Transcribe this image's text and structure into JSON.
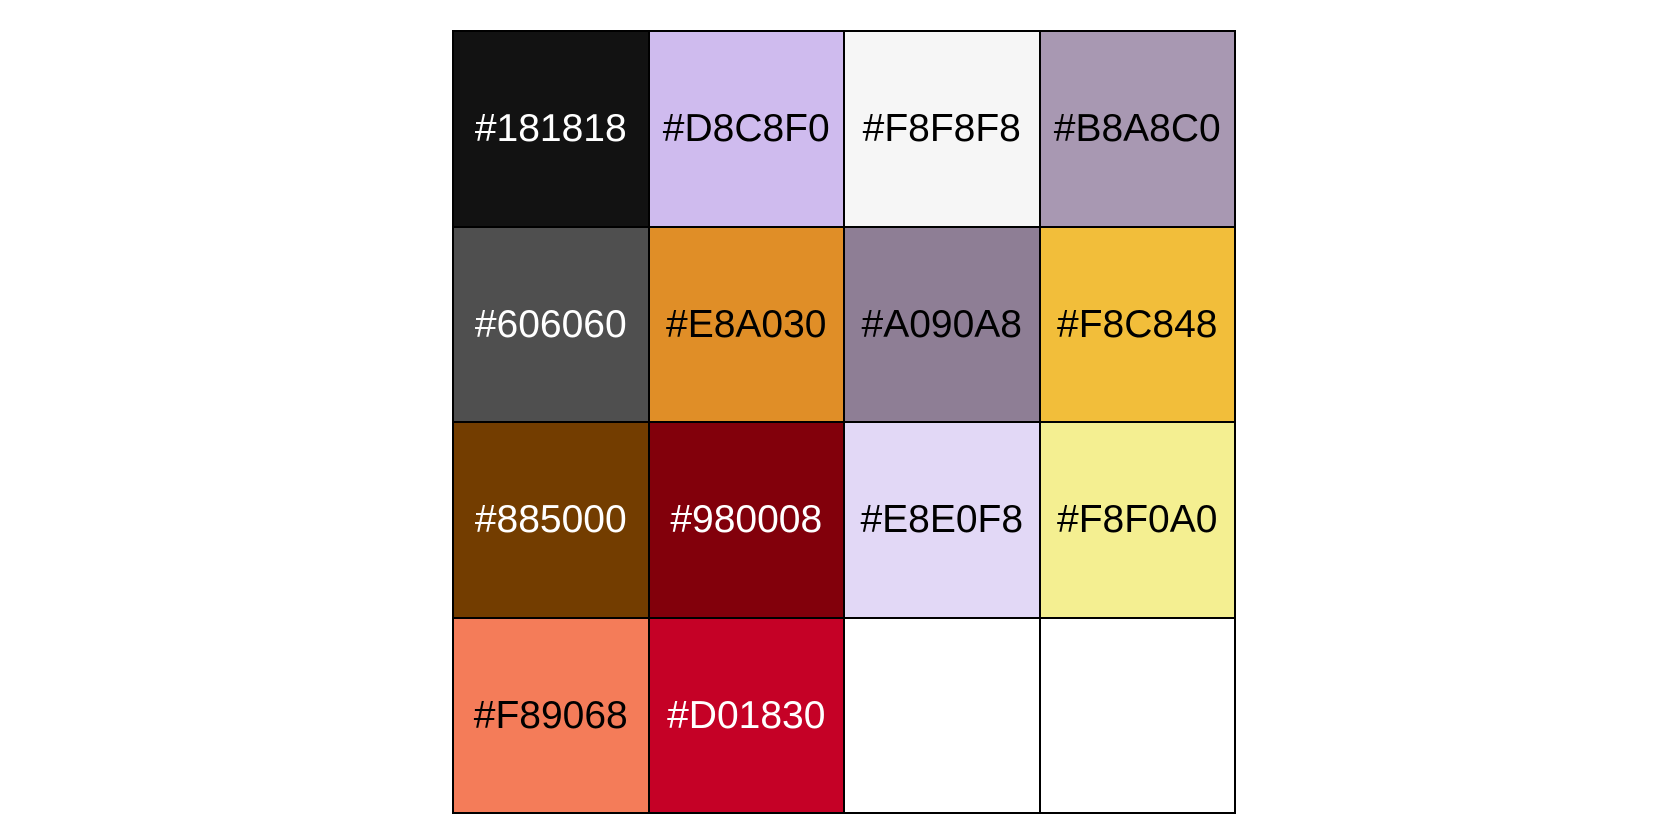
{
  "palette": {
    "swatches": [
      {
        "label": "#181818",
        "fill": "#121212",
        "text_color": "#ffffff"
      },
      {
        "label": "#D8C8F0",
        "fill": "#CFBBEE",
        "text_color": "#000000"
      },
      {
        "label": "#F8F8F8",
        "fill": "#F6F6F6",
        "text_color": "#000000"
      },
      {
        "label": "#B8A8C0",
        "fill": "#A898B2",
        "text_color": "#000000"
      },
      {
        "label": "#606060",
        "fill": "#4F4F4F",
        "text_color": "#ffffff"
      },
      {
        "label": "#E8A030",
        "fill": "#E08E27",
        "text_color": "#000000"
      },
      {
        "label": "#A090A8",
        "fill": "#8E7E95",
        "text_color": "#000000"
      },
      {
        "label": "#F8C848",
        "fill": "#F2BE3A",
        "text_color": "#000000"
      },
      {
        "label": "#885000",
        "fill": "#733D00",
        "text_color": "#ffffff"
      },
      {
        "label": "#980008",
        "fill": "#82000B",
        "text_color": "#ffffff"
      },
      {
        "label": "#E8E0F8",
        "fill": "#E2D8F6",
        "text_color": "#000000"
      },
      {
        "label": "#F8F0A0",
        "fill": "#F4EF91",
        "text_color": "#000000"
      },
      {
        "label": "#F89068",
        "fill": "#F47C59",
        "text_color": "#000000"
      },
      {
        "label": "#D01830",
        "fill": "#C50126",
        "text_color": "#ffffff"
      },
      {
        "label": "",
        "fill": "#ffffff",
        "text_color": "#000000"
      },
      {
        "label": "",
        "fill": "#ffffff",
        "text_color": "#000000"
      }
    ]
  }
}
